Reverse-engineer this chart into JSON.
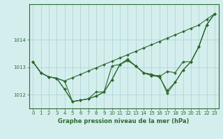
{
  "xlabel": "Graphe pression niveau de la mer (hPa)",
  "x": [
    0,
    1,
    2,
    3,
    4,
    5,
    6,
    7,
    8,
    9,
    10,
    11,
    12,
    13,
    14,
    15,
    16,
    17,
    18,
    19,
    20,
    21,
    22,
    23
  ],
  "series": [
    [
      1013.2,
      1012.8,
      1012.65,
      1012.6,
      1012.2,
      1011.75,
      1011.8,
      1011.85,
      1011.95,
      1012.1,
      1012.55,
      1013.1,
      1013.25,
      1013.05,
      1012.8,
      1012.75,
      1012.65,
      1012.15,
      1012.45,
      1012.9,
      1013.2,
      1013.75,
      1014.55,
      1014.95
    ],
    [
      1013.2,
      1012.8,
      1012.65,
      1012.6,
      1012.2,
      1011.75,
      1011.8,
      1011.85,
      1011.95,
      1012.1,
      1013.05,
      1013.1,
      1013.3,
      1013.05,
      1012.8,
      1012.7,
      1012.7,
      1012.05,
      1012.45,
      1012.9,
      1013.2,
      1013.75,
      1014.55,
      1014.95
    ],
    [
      1013.2,
      1012.8,
      1012.65,
      1012.6,
      1012.5,
      1011.75,
      1011.8,
      1011.85,
      1012.1,
      1012.1,
      1012.55,
      1013.1,
      1013.25,
      1013.05,
      1012.8,
      1012.7,
      1012.65,
      1012.85,
      1012.8,
      1013.2,
      1013.2,
      1013.75,
      1014.55,
      1014.95
    ],
    [
      1013.2,
      1012.8,
      1012.65,
      1012.6,
      1012.5,
      1012.62,
      1012.74,
      1012.86,
      1012.98,
      1013.1,
      1013.22,
      1013.34,
      1013.46,
      1013.58,
      1013.7,
      1013.82,
      1013.94,
      1014.06,
      1014.18,
      1014.3,
      1014.42,
      1014.54,
      1014.75,
      1014.95
    ]
  ],
  "line_color": "#2d6a2d",
  "marker": "D",
  "marker_size": 2.0,
  "linewidth": 0.8,
  "bg_color": "#d4eeee",
  "grid_color": "#aad0d0",
  "axis_color": "#2d6a2d",
  "text_color": "#2d6a2d",
  "ylim": [
    1011.5,
    1015.3
  ],
  "yticks": [
    1012,
    1013,
    1014
  ],
  "xticks": [
    0,
    1,
    2,
    3,
    4,
    5,
    6,
    7,
    8,
    9,
    10,
    11,
    12,
    13,
    14,
    15,
    16,
    17,
    18,
    19,
    20,
    21,
    22,
    23
  ],
  "tick_fontsize": 5.0,
  "label_fontsize": 6.0
}
